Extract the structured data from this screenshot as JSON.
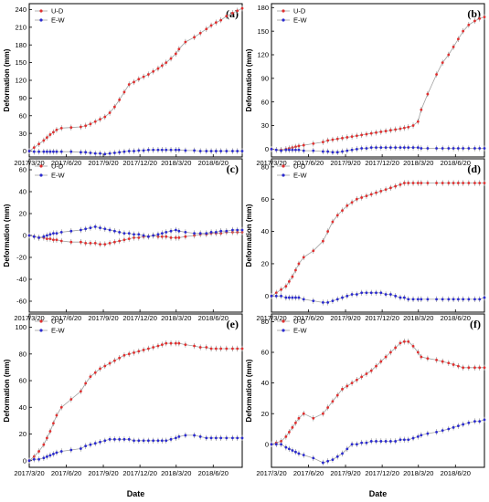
{
  "x_axis": {
    "label": "Date",
    "ticks": [
      "2017/3/20",
      "2017/6/20",
      "2017/9/20",
      "2017/12/20",
      "2018/3/20",
      "2018/6/20"
    ],
    "tick_days": [
      0,
      92,
      184,
      275,
      365,
      457
    ],
    "xlim_days": [
      0,
      529
    ]
  },
  "legend": [
    "U-D",
    "E-W"
  ],
  "colors": {
    "ud": "#e03030",
    "ew": "#2a2ad0",
    "line": "#a0a0a0"
  },
  "chart_data": [
    {
      "type": "line",
      "panel": "(a)",
      "ylabel": "Deformation (mm)",
      "ylim": [
        -10,
        250
      ],
      "yticks": [
        0,
        30,
        60,
        90,
        120,
        150,
        180,
        210,
        240
      ],
      "x_days": [
        0,
        12,
        24,
        36,
        44,
        52,
        60,
        68,
        80,
        104,
        128,
        140,
        152,
        164,
        176,
        188,
        200,
        212,
        224,
        236,
        248,
        260,
        272,
        284,
        296,
        308,
        320,
        330,
        340,
        352,
        364,
        372,
        388,
        410,
        425,
        440,
        452,
        464,
        476,
        490,
        505,
        517,
        529
      ],
      "series": [
        {
          "name": "U-D",
          "values": [
            0,
            6,
            12,
            18,
            23,
            28,
            32,
            36,
            39,
            40,
            41,
            43,
            46,
            50,
            54,
            58,
            65,
            75,
            87,
            100,
            113,
            117,
            122,
            126,
            130,
            135,
            140,
            145,
            150,
            157,
            165,
            173,
            185,
            193,
            200,
            207,
            213,
            218,
            222,
            229,
            234,
            238,
            242
          ]
        },
        {
          "name": "E-W",
          "values": [
            0,
            -1,
            -1,
            -1,
            -1,
            -1,
            -1,
            -1,
            -1,
            -1,
            -2,
            -2,
            -3,
            -4,
            -4,
            -5,
            -4,
            -3,
            -2,
            -1,
            0,
            0,
            1,
            1,
            2,
            2,
            2,
            2,
            2,
            2,
            2,
            2,
            1,
            1,
            0,
            0,
            0,
            0,
            0,
            0,
            0,
            0,
            0
          ]
        }
      ]
    },
    {
      "type": "line",
      "panel": "(b)",
      "ylabel": "Deformation (mm)",
      "ylim": [
        -10,
        185
      ],
      "yticks": [
        0,
        30,
        60,
        90,
        120,
        150,
        180
      ],
      "x_days": [
        0,
        12,
        24,
        36,
        44,
        52,
        60,
        68,
        80,
        104,
        128,
        140,
        152,
        164,
        176,
        188,
        200,
        212,
        224,
        236,
        248,
        260,
        272,
        284,
        296,
        308,
        320,
        330,
        340,
        352,
        364,
        372,
        388,
        410,
        425,
        440,
        452,
        464,
        476,
        490,
        505,
        517,
        529
      ],
      "series": [
        {
          "name": "U-D",
          "values": [
            0,
            -1,
            -1,
            0,
            1,
            2,
            3,
            4,
            5,
            7,
            9,
            11,
            12,
            13,
            14,
            15,
            16,
            17,
            18,
            19,
            20,
            21,
            22,
            23,
            24,
            25,
            26,
            27,
            28,
            30,
            35,
            50,
            70,
            95,
            110,
            120,
            130,
            140,
            150,
            158,
            163,
            166,
            168
          ]
        },
        {
          "name": "E-W",
          "values": [
            0,
            -1,
            -2,
            -1,
            -1,
            -1,
            -1,
            -1,
            -2,
            -2,
            -3,
            -3,
            -4,
            -4,
            -3,
            -2,
            -1,
            0,
            1,
            1,
            2,
            2,
            2,
            2,
            2,
            2,
            2,
            2,
            2,
            2,
            2,
            1,
            1,
            1,
            1,
            1,
            1,
            1,
            1,
            1,
            1,
            1,
            1
          ]
        }
      ]
    },
    {
      "type": "line",
      "panel": "(c)",
      "ylabel": "Deformation (mm)",
      "ylim": [
        -70,
        70
      ],
      "yticks": [
        -60,
        -40,
        -20,
        0,
        20,
        40,
        60
      ],
      "x_days": [
        0,
        12,
        24,
        36,
        44,
        52,
        60,
        68,
        80,
        104,
        128,
        140,
        152,
        164,
        176,
        188,
        200,
        212,
        224,
        236,
        248,
        260,
        272,
        284,
        296,
        308,
        320,
        330,
        340,
        352,
        364,
        372,
        388,
        410,
        425,
        440,
        452,
        464,
        476,
        490,
        505,
        517,
        529
      ],
      "series": [
        {
          "name": "U-D",
          "values": [
            0,
            -1,
            -2,
            -2,
            -3,
            -3,
            -4,
            -4,
            -5,
            -6,
            -6,
            -7,
            -7,
            -7,
            -8,
            -8,
            -7,
            -6,
            -5,
            -4,
            -3,
            -2,
            -2,
            -1,
            -1,
            0,
            -1,
            -1,
            -1,
            -2,
            -2,
            -2,
            -1,
            0,
            1,
            1,
            2,
            2,
            2,
            3,
            3,
            3,
            3
          ]
        },
        {
          "name": "E-W",
          "values": [
            0,
            -1,
            -2,
            -1,
            0,
            1,
            2,
            2,
            3,
            4,
            5,
            6,
            7,
            8,
            7,
            6,
            5,
            4,
            3,
            2,
            2,
            1,
            1,
            0,
            -1,
            0,
            1,
            2,
            3,
            4,
            5,
            4,
            3,
            2,
            2,
            2,
            3,
            3,
            4,
            4,
            5,
            5,
            5
          ]
        }
      ]
    },
    {
      "type": "line",
      "panel": "(d)",
      "ylabel": "Deformation (mm)",
      "ylim": [
        -10,
        85
      ],
      "yticks": [
        0,
        20,
        40,
        60,
        80
      ],
      "x_days": [
        0,
        12,
        24,
        36,
        44,
        52,
        60,
        68,
        80,
        104,
        128,
        140,
        152,
        164,
        176,
        188,
        200,
        212,
        224,
        236,
        248,
        260,
        272,
        284,
        296,
        308,
        320,
        330,
        340,
        352,
        364,
        372,
        388,
        410,
        425,
        440,
        452,
        464,
        476,
        490,
        505,
        517,
        529
      ],
      "series": [
        {
          "name": "U-D",
          "values": [
            0,
            2,
            4,
            6,
            9,
            12,
            16,
            20,
            24,
            28,
            34,
            40,
            46,
            50,
            53,
            56,
            58,
            60,
            61,
            62,
            63,
            64,
            65,
            66,
            67,
            68,
            69,
            70,
            70,
            70,
            70,
            70,
            70,
            70,
            70,
            70,
            70,
            70,
            70,
            70,
            70,
            70,
            70
          ]
        },
        {
          "name": "E-W",
          "values": [
            0,
            0,
            0,
            -1,
            -1,
            -1,
            -1,
            -1,
            -2,
            -3,
            -4,
            -4,
            -3,
            -2,
            -1,
            0,
            1,
            1,
            2,
            2,
            2,
            2,
            2,
            1,
            1,
            0,
            -1,
            -1,
            -2,
            -2,
            -2,
            -2,
            -2,
            -2,
            -2,
            -2,
            -2,
            -2,
            -2,
            -2,
            -2,
            -2,
            -1
          ]
        }
      ]
    },
    {
      "type": "line",
      "panel": "(e)",
      "ylabel": "Deformation (mm)",
      "ylim": [
        -5,
        110
      ],
      "yticks": [
        0,
        20,
        40,
        60,
        80,
        100
      ],
      "x_days": [
        0,
        12,
        24,
        36,
        44,
        52,
        60,
        68,
        80,
        104,
        128,
        140,
        152,
        164,
        176,
        188,
        200,
        212,
        224,
        236,
        248,
        260,
        272,
        284,
        296,
        308,
        320,
        330,
        340,
        352,
        364,
        372,
        388,
        410,
        425,
        440,
        452,
        464,
        476,
        490,
        505,
        517,
        529
      ],
      "series": [
        {
          "name": "U-D",
          "values": [
            0,
            3,
            7,
            12,
            17,
            22,
            28,
            34,
            40,
            46,
            52,
            58,
            63,
            66,
            69,
            71,
            73,
            75,
            77,
            79,
            80,
            81,
            82,
            83,
            84,
            85,
            86,
            87,
            88,
            88,
            88,
            88,
            87,
            86,
            85,
            85,
            84,
            84,
            84,
            84,
            84,
            84,
            84
          ]
        },
        {
          "name": "E-W",
          "values": [
            0,
            1,
            1,
            2,
            3,
            4,
            5,
            6,
            7,
            8,
            9,
            11,
            12,
            13,
            14,
            15,
            16,
            16,
            16,
            16,
            16,
            15,
            15,
            15,
            15,
            15,
            15,
            15,
            15,
            16,
            17,
            18,
            19,
            19,
            18,
            17,
            17,
            17,
            17,
            17,
            17,
            17,
            17
          ]
        }
      ]
    },
    {
      "type": "line",
      "panel": "(f)",
      "ylabel": "Deformation (mm)",
      "ylim": [
        -15,
        85
      ],
      "yticks": [
        0,
        20,
        40,
        60,
        80
      ],
      "x_days": [
        0,
        12,
        24,
        36,
        44,
        52,
        60,
        68,
        80,
        104,
        128,
        140,
        152,
        164,
        176,
        188,
        200,
        212,
        224,
        236,
        248,
        260,
        272,
        284,
        296,
        308,
        320,
        330,
        340,
        352,
        364,
        372,
        388,
        410,
        425,
        440,
        452,
        464,
        476,
        490,
        505,
        517,
        529
      ],
      "series": [
        {
          "name": "U-D",
          "values": [
            0,
            1,
            2,
            5,
            8,
            11,
            14,
            17,
            20,
            17,
            20,
            24,
            28,
            32,
            36,
            38,
            40,
            42,
            44,
            46,
            48,
            51,
            54,
            57,
            60,
            63,
            66,
            67,
            67,
            64,
            60,
            57,
            56,
            55,
            54,
            53,
            52,
            51,
            50,
            50,
            50,
            50,
            50
          ]
        },
        {
          "name": "E-W",
          "values": [
            0,
            0,
            0,
            -2,
            -3,
            -4,
            -5,
            -6,
            -7,
            -9,
            -12,
            -11,
            -10,
            -8,
            -6,
            -3,
            0,
            0,
            1,
            1,
            2,
            2,
            2,
            2,
            2,
            2,
            3,
            3,
            3,
            4,
            5,
            6,
            7,
            8,
            9,
            10,
            11,
            12,
            13,
            14,
            15,
            15,
            16
          ]
        }
      ]
    }
  ]
}
